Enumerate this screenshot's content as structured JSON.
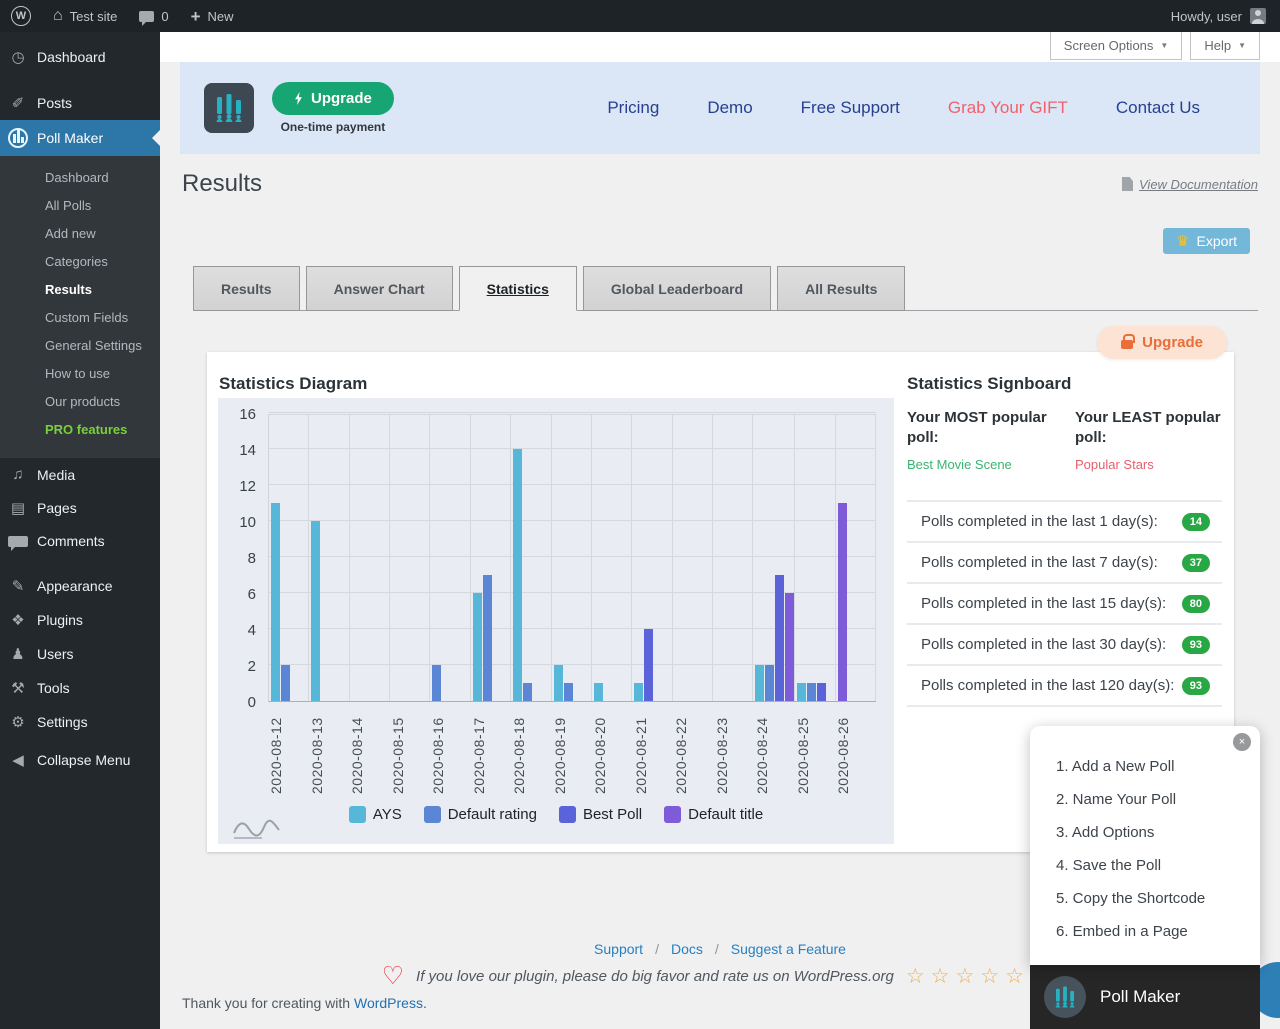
{
  "admin_bar": {
    "site_name": "Test site",
    "comments_count": "0",
    "new_label": "New",
    "howdy": "Howdy, user"
  },
  "screen_options": {
    "label": "Screen Options"
  },
  "help": {
    "label": "Help"
  },
  "sidebar": {
    "items_top": [
      {
        "label": "Dashboard",
        "icon": "dashboard-icon"
      },
      {
        "label": "Posts",
        "icon": "pin-icon"
      }
    ],
    "poll_maker": {
      "label": "Poll Maker",
      "icon": "poll-icon"
    },
    "submenu": [
      {
        "label": "Dashboard"
      },
      {
        "label": "All Polls"
      },
      {
        "label": "Add new"
      },
      {
        "label": "Categories"
      },
      {
        "label": "Results",
        "current": true
      },
      {
        "label": "Custom Fields"
      },
      {
        "label": "General Settings"
      },
      {
        "label": "How to use"
      },
      {
        "label": "Our products"
      },
      {
        "label": "PRO features",
        "pro": true
      }
    ],
    "items_middle": [
      {
        "label": "Media",
        "icon": "media-icon"
      },
      {
        "label": "Pages",
        "icon": "pages-icon"
      },
      {
        "label": "Comments",
        "icon": "comments-icon"
      }
    ],
    "items_lower": [
      {
        "label": "Appearance",
        "icon": "appearance-icon"
      },
      {
        "label": "Plugins",
        "icon": "plugins-icon"
      },
      {
        "label": "Users",
        "icon": "users-icon"
      },
      {
        "label": "Tools",
        "icon": "tools-icon"
      },
      {
        "label": "Settings",
        "icon": "settings-icon"
      }
    ],
    "collapse": {
      "label": "Collapse Menu",
      "icon": "collapse-icon"
    }
  },
  "plugin_header": {
    "upgrade_button": {
      "label": "Upgrade",
      "sub": "One-time payment"
    },
    "nav": [
      {
        "label": "Pricing"
      },
      {
        "label": "Demo"
      },
      {
        "label": "Free Support"
      },
      {
        "label": "Grab Your GIFT",
        "highlight": true
      },
      {
        "label": "Contact Us"
      }
    ]
  },
  "page": {
    "title": "Results",
    "doc_link": "View Documentation"
  },
  "export_button": {
    "label": "Export"
  },
  "tabs": [
    {
      "label": "Results"
    },
    {
      "label": "Answer Chart"
    },
    {
      "label": "Statistics",
      "active": true
    },
    {
      "label": "Global Leaderboard"
    },
    {
      "label": "All Results"
    }
  ],
  "upgrade_pill": {
    "label": "Upgrade"
  },
  "chart_data": {
    "type": "bar",
    "title": "Statistics Diagram",
    "categories": [
      "2020-08-12",
      "2020-08-13",
      "2020-08-14",
      "2020-08-15",
      "2020-08-16",
      "2020-08-17",
      "2020-08-18",
      "2020-08-19",
      "2020-08-20",
      "2020-08-21",
      "2020-08-22",
      "2020-08-23",
      "2020-08-24",
      "2020-08-25",
      "2020-08-26"
    ],
    "series": [
      {
        "name": "AYS",
        "color": "#56b7d9",
        "values": [
          11,
          10,
          0,
          0,
          0,
          6,
          14,
          2,
          1,
          1,
          0,
          0,
          2,
          1,
          0
        ]
      },
      {
        "name": "Default rating",
        "color": "#5b86d5",
        "values": [
          2,
          0,
          0,
          0,
          2,
          7,
          1,
          1,
          0,
          0,
          0,
          0,
          2,
          1,
          0
        ]
      },
      {
        "name": "Best Poll",
        "color": "#5a63d8",
        "values": [
          0,
          0,
          0,
          0,
          0,
          0,
          0,
          0,
          0,
          4,
          0,
          0,
          7,
          1,
          0
        ]
      },
      {
        "name": "Default title",
        "color": "#7e5bd8",
        "values": [
          0,
          0,
          0,
          0,
          0,
          0,
          0,
          0,
          0,
          0,
          0,
          0,
          6,
          0,
          11
        ]
      }
    ],
    "ylim": [
      0,
      16
    ],
    "ytick_step": 2,
    "grid": true,
    "legend_position": "bottom",
    "xlabel": "",
    "ylabel": ""
  },
  "signboard": {
    "title": "Statistics Signboard",
    "most": {
      "heading": "Your MOST popular poll:",
      "value": "Best Movie Scene"
    },
    "least": {
      "heading": "Your LEAST popular poll:",
      "value": "Popular Stars"
    },
    "rows": [
      {
        "label": "Polls completed in the last 1 day(s):",
        "value": "14"
      },
      {
        "label": "Polls completed in the last 7 day(s):",
        "value": "37"
      },
      {
        "label": "Polls completed in the last 15 day(s):",
        "value": "80"
      },
      {
        "label": "Polls completed in the last 30 day(s):",
        "value": "93"
      },
      {
        "label": "Polls completed in the last 120 day(s):",
        "value": "93"
      }
    ]
  },
  "popup": {
    "steps": [
      "1. Add a New Poll",
      "2. Name Your Poll",
      "3. Add Options",
      "4. Save the Poll",
      "5. Copy the Shortcode",
      "6. Embed in a Page"
    ]
  },
  "widget": {
    "brand": "Poll Maker"
  },
  "footer": {
    "links": [
      "Support",
      "Docs",
      "Suggest a Feature"
    ],
    "separator": "/",
    "rate_text": "If you love our plugin, please do big favor and rate us on WordPress.org",
    "stars_count": 5,
    "thanks_prefix": "Thank you for creating with ",
    "thanks_link": "WordPress",
    "thanks_suffix": "."
  },
  "colors": {
    "accent_green": "#17a673",
    "sidebar_active_blue": "#2d76a8",
    "badge_green": "#28a745",
    "gift_red": "#f2606a",
    "most_green": "#3bb273",
    "least_red": "#e4606d",
    "export_blue": "#73b8d8",
    "upgrade_orange": "#e96e39",
    "header_bg": "#dbe7f7"
  }
}
